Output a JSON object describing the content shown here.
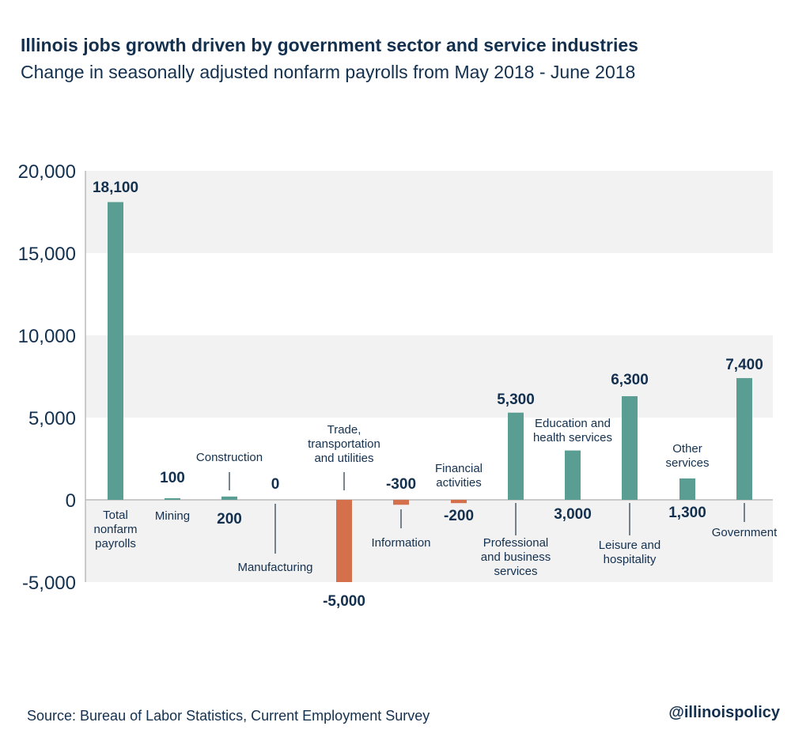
{
  "title": "Illinois jobs growth driven by government sector and service industries",
  "subtitle": "Change in seasonally adjusted nonfarm payrolls from May 2018 - June 2018",
  "source": "Source: Bureau of Labor Statistics, Current Employment Survey",
  "handle": "@illinoispolicy",
  "colors": {
    "positive": "#5a9e93",
    "negative": "#d4704b",
    "text": "#13304f",
    "band": "#f2f2f2"
  },
  "chart_data": {
    "type": "bar",
    "title": "Illinois jobs growth driven by government sector and service industries",
    "subtitle": "Change in seasonally adjusted nonfarm payrolls from May 2018 - June 2018",
    "categories": [
      [
        "Total",
        "nonfarm",
        "payrolls"
      ],
      [
        "Mining"
      ],
      [
        "Construction"
      ],
      [
        "Manufacturing"
      ],
      [
        "Trade,",
        "transportation",
        "and utilities"
      ],
      [
        "Information"
      ],
      [
        "Financial",
        "activities"
      ],
      [
        "Professional",
        "and business",
        "services"
      ],
      [
        "Education and",
        "health services"
      ],
      [
        "Leisure and",
        "hospitality"
      ],
      [
        "Other",
        "services"
      ],
      [
        "Government"
      ]
    ],
    "values": [
      18100,
      100,
      200,
      0,
      -5000,
      -300,
      -200,
      5300,
      3000,
      6300,
      1300,
      7400
    ],
    "value_labels": [
      "18,100",
      "100",
      "200",
      "0",
      "-5,000",
      "-300",
      "-200",
      "5,300",
      "3,000",
      "6,300",
      "1,300",
      "7,400"
    ],
    "ylim": [
      -5000,
      20000
    ],
    "yticks": [
      20000,
      15000,
      10000,
      5000,
      0,
      -5000
    ],
    "ytick_labels": [
      "20,000",
      "15,000",
      "10,000",
      "5,000",
      "0",
      "-5,000"
    ],
    "grid": "alternating bands",
    "legend": "none"
  }
}
